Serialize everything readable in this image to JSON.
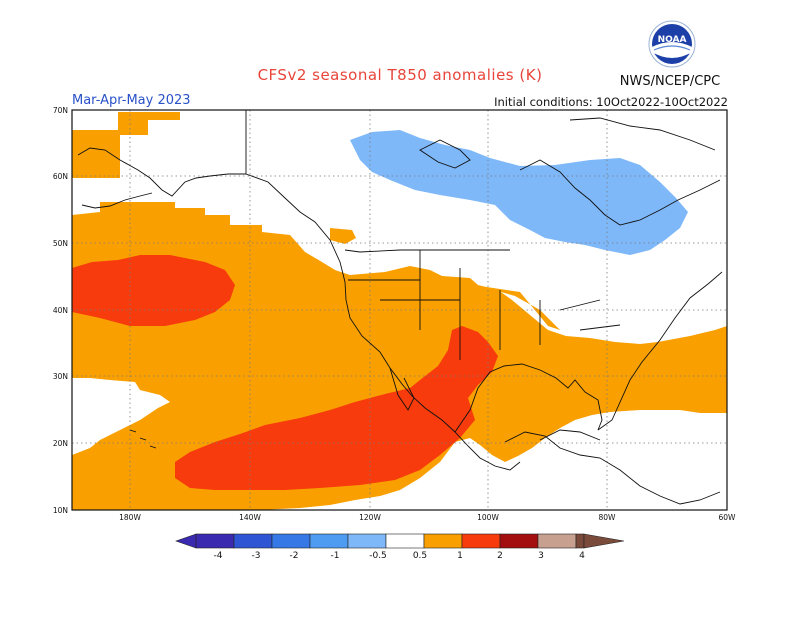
{
  "title": "CFSv2 seasonal T850 anomalies (K)",
  "period": "Mar-Apr-May 2023",
  "initial_conditions": "Initial conditions: 10Oct2022-10Oct2022",
  "agency": "NWS/NCEP/CPC",
  "logo": {
    "text": "NOAA",
    "icon": "noaa-logo-icon"
  },
  "map": {
    "lat_labels": [
      "70N",
      "60N",
      "50N",
      "40N",
      "30N",
      "20N",
      "10N"
    ],
    "lon_labels": [
      "180W",
      "140W",
      "120W",
      "100W",
      "80W",
      "60W"
    ],
    "colors": {
      "warm_0_5_1": "#f9a000",
      "warm_1_2": "#f83b0c",
      "cold_-1_-0_5": "#7eb8f9"
    }
  },
  "colorbar": {
    "labels": [
      "-4",
      "-3",
      "-2",
      "-1",
      "-0.5",
      "0.5",
      "1",
      "2",
      "3",
      "4"
    ],
    "colors": [
      "#3a2ab0",
      "#2e55d4",
      "#3578e6",
      "#4e9bf2",
      "#7eb8f9",
      "#ffffff",
      "#f9a000",
      "#f83b0c",
      "#d91a0e",
      "#a30e0e",
      "#c8a090",
      "#7a4a3a"
    ]
  }
}
